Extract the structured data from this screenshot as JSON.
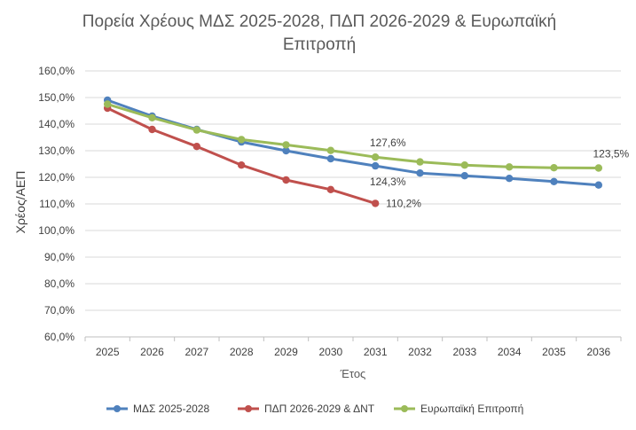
{
  "chart_data": {
    "type": "line",
    "title_line1": "Πορεία Χρέους ΜΔΣ 2025-2028, ΠΔΠ 2026-2029 & Ευρωπαϊκή",
    "title_line2": "Επιτροπή",
    "xlabel": "Έτος",
    "ylabel": "Χρέος/ΑΕΠ",
    "x": [
      "2025",
      "2026",
      "2027",
      "2028",
      "2029",
      "2030",
      "2031",
      "2032",
      "2033",
      "2034",
      "2035",
      "2036"
    ],
    "ylim": [
      60,
      160
    ],
    "yticks": [
      60,
      70,
      80,
      90,
      100,
      110,
      120,
      130,
      140,
      150,
      160
    ],
    "ytick_labels": [
      "60,0%",
      "70,0%",
      "80,0%",
      "90,0%",
      "100,0%",
      "110,0%",
      "120,0%",
      "130,0%",
      "140,0%",
      "150,0%",
      "160,0%"
    ],
    "grid": true,
    "legend_position": "bottom",
    "series": [
      {
        "name": "ΜΔΣ 2025-2028",
        "color": "#4f81bd",
        "values": [
          149.0,
          143.0,
          138.0,
          133.3,
          130.0,
          127.0,
          124.3,
          121.6,
          120.6,
          119.6,
          118.4,
          117.1
        ]
      },
      {
        "name": "ΠΔΠ 2026-2029 & ΔΝΤ",
        "color": "#c0504d",
        "values": [
          146.0,
          138.0,
          131.6,
          124.6,
          119.0,
          115.4,
          110.2,
          null,
          null,
          null,
          null,
          null
        ]
      },
      {
        "name": "Ευρωπαϊκή Επιτροπή",
        "color": "#9bbb59",
        "values": [
          147.5,
          142.4,
          137.8,
          134.2,
          132.2,
          130.1,
          127.6,
          125.8,
          124.6,
          123.9,
          123.6,
          123.5
        ]
      }
    ],
    "annotations": [
      {
        "series": 2,
        "index": 6,
        "text": "127,6%",
        "pos": "above"
      },
      {
        "series": 0,
        "index": 6,
        "text": "124,3%",
        "pos": "below"
      },
      {
        "series": 1,
        "index": 6,
        "text": "110,2%",
        "pos": "right"
      },
      {
        "series": 2,
        "index": 11,
        "text": "123,5%",
        "pos": "above"
      }
    ]
  }
}
